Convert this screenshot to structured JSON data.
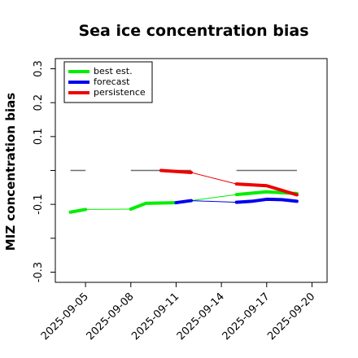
{
  "chart_data": {
    "type": "line",
    "title": "Sea ice concentration bias",
    "xlabel": "",
    "ylabel": "MIZ concentration bias",
    "ylim": [
      -0.33,
      0.33
    ],
    "xlim": [
      "2025-09-03",
      "2025-09-21"
    ],
    "x_ticks": [
      "2025-09-05",
      "2025-09-08",
      "2025-09-11",
      "2025-09-14",
      "2025-09-17",
      "2025-09-20"
    ],
    "x_tick_colors": [
      "#000000",
      "#000000",
      "#228b22",
      "#000000",
      "#000000",
      "#000000"
    ],
    "y_tick_labels": [
      {
        "value": -0.3,
        "label": "-0.3"
      },
      {
        "value": -0.2,
        "label": ""
      },
      {
        "value": -0.1,
        "label": "-0.1"
      },
      {
        "value": 0.0,
        "label": ""
      },
      {
        "value": 0.1,
        "label": "0.1"
      },
      {
        "value": 0.2,
        "label": "0.2"
      },
      {
        "value": 0.3,
        "label": "0.3"
      }
    ],
    "legend": {
      "placement": "top-left",
      "entries": [
        "best est.",
        "forecast",
        "persistence"
      ]
    },
    "series": [
      {
        "name": "best est.",
        "color": "#00ee00",
        "segments": [
          {
            "x": [
              "2025-09-04",
              "2025-09-05"
            ],
            "y": [
              -0.123,
              -0.115
            ]
          },
          {
            "x": [
              "2025-09-05",
              "2025-09-08"
            ],
            "y": [
              -0.115,
              -0.114
            ],
            "thin": true
          },
          {
            "x": [
              "2025-09-08",
              "2025-09-09",
              "2025-09-11"
            ],
            "y": [
              -0.114,
              -0.097,
              -0.095
            ]
          },
          {
            "x": [
              "2025-09-11",
              "2025-09-15"
            ],
            "y": [
              -0.095,
              -0.071
            ],
            "thin": true
          },
          {
            "x": [
              "2025-09-15",
              "2025-09-17",
              "2025-09-19"
            ],
            "y": [
              -0.071,
              -0.063,
              -0.068
            ]
          }
        ]
      },
      {
        "name": "forecast",
        "color": "#0000ee",
        "segments": [
          {
            "x": [
              "2025-09-11",
              "2025-09-12"
            ],
            "y": [
              -0.095,
              -0.089
            ]
          },
          {
            "x": [
              "2025-09-12",
              "2025-09-15"
            ],
            "y": [
              -0.089,
              -0.094
            ],
            "thin": true
          },
          {
            "x": [
              "2025-09-15",
              "2025-09-16",
              "2025-09-17",
              "2025-09-18",
              "2025-09-19"
            ],
            "y": [
              -0.094,
              -0.091,
              -0.085,
              -0.086,
              -0.091
            ]
          }
        ]
      },
      {
        "name": "persistence",
        "color": "#ee0000",
        "segments": [
          {
            "x": [
              "2025-09-10",
              "2025-09-12"
            ],
            "y": [
              0.0,
              -0.006
            ]
          },
          {
            "x": [
              "2025-09-12",
              "2025-09-15"
            ],
            "y": [
              -0.006,
              -0.04
            ],
            "thin": true
          },
          {
            "x": [
              "2025-09-15",
              "2025-09-17",
              "2025-09-19"
            ],
            "y": [
              -0.04,
              -0.045,
              -0.072
            ]
          }
        ]
      }
    ],
    "reference_segments": [
      {
        "x": [
          "2025-09-04",
          "2025-09-05"
        ],
        "y": 0.0
      },
      {
        "x": [
          "2025-09-08",
          "2025-09-12"
        ],
        "y": 0.0
      },
      {
        "x": [
          "2025-09-15",
          "2025-09-19"
        ],
        "y": 0.0
      }
    ]
  }
}
